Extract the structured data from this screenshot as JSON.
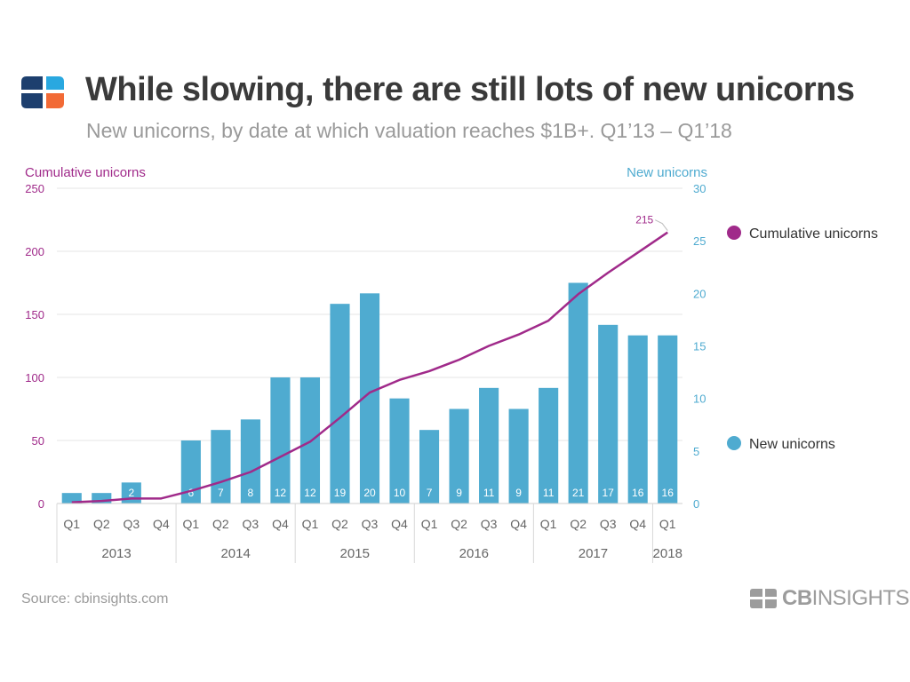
{
  "header": {
    "logo_icon": "cb-insights-logo-icon",
    "title": "While slowing, there are still lots of new unicorns",
    "subtitle": "New unicorns, by date at which valuation reaches $1B+. Q1’13 – Q1’18"
  },
  "footer": {
    "source": "Source: cbinsights.com",
    "brand_bold": "CB",
    "brand_rest": "INSIGHTS",
    "brand_icon": "cb-insights-logo-icon"
  },
  "colors": {
    "bar": "#4fabd0",
    "line": "#a02a8a",
    "logo_navy": "#1d3f6e",
    "logo_blue": "#29a8e0",
    "logo_orange": "#f26a36",
    "grid": "#e6e6e6"
  },
  "chart_data": {
    "type": "bar",
    "categories": [
      "Q1",
      "Q2",
      "Q3",
      "Q4",
      "Q1",
      "Q2",
      "Q3",
      "Q4",
      "Q1",
      "Q2",
      "Q3",
      "Q4",
      "Q1",
      "Q2",
      "Q3",
      "Q4",
      "Q1",
      "Q2",
      "Q3",
      "Q4",
      "Q1"
    ],
    "years": [
      {
        "label": "2013",
        "quarters": 4
      },
      {
        "label": "2014",
        "quarters": 4
      },
      {
        "label": "2015",
        "quarters": 4
      },
      {
        "label": "2016",
        "quarters": 4
      },
      {
        "label": "2017",
        "quarters": 4
      },
      {
        "label": "2018",
        "quarters": 1
      }
    ],
    "series": [
      {
        "name": "New unicorns",
        "kind": "bar",
        "axis": "right",
        "values": [
          1,
          1,
          2,
          0,
          6,
          7,
          8,
          12,
          12,
          19,
          20,
          10,
          7,
          9,
          11,
          9,
          11,
          21,
          17,
          16,
          16
        ],
        "labels": [
          "",
          "",
          "2",
          "",
          "6",
          "7",
          "8",
          "12",
          "12",
          "19",
          "20",
          "10",
          "7",
          "9",
          "11",
          "9",
          "11",
          "21",
          "17",
          "16",
          "16"
        ]
      },
      {
        "name": "Cumulative unicorns",
        "kind": "line",
        "axis": "left",
        "values": [
          1,
          2,
          4,
          4,
          10,
          17,
          25,
          37,
          49,
          68,
          88,
          98,
          105,
          114,
          125,
          134,
          145,
          166,
          183,
          199,
          215
        ],
        "end_label": "215"
      }
    ],
    "y_left": {
      "label": "Cumulative unicorns",
      "min": 0,
      "max": 250,
      "ticks": [
        "0",
        "50",
        "100",
        "150",
        "200",
        "250"
      ]
    },
    "y_right": {
      "label": "New unicorns",
      "min": 0,
      "max": 30,
      "ticks": [
        "0",
        "5",
        "10",
        "15",
        "20",
        "25",
        "30"
      ]
    },
    "grid": true,
    "legend_position": "right",
    "legend": [
      "Cumulative unicorns",
      "New unicorns"
    ]
  }
}
